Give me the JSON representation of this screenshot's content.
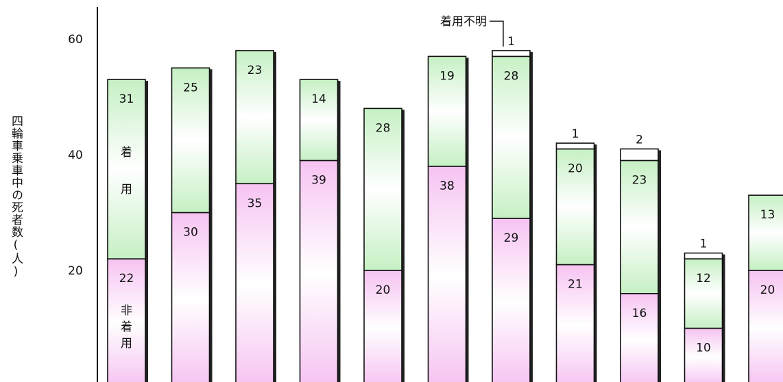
{
  "chart_data": {
    "type": "bar",
    "stacked": true,
    "ylabel": "四輪車乗車中の死者数(人)",
    "ylim": [
      0,
      60
    ],
    "yticks": [
      20,
      40,
      60
    ],
    "grid": false,
    "categories": [
      "",
      "",
      "",
      "",
      "",
      "",
      "",
      "",
      "",
      "",
      ""
    ],
    "series": [
      {
        "name": "非着用",
        "values": [
          22,
          30,
          35,
          39,
          20,
          38,
          29,
          21,
          16,
          10,
          20
        ],
        "color": "#f7c6f3"
      },
      {
        "name": "着用",
        "values": [
          31,
          25,
          23,
          14,
          28,
          19,
          28,
          20,
          23,
          12,
          13
        ],
        "color": "#c9f2c7"
      },
      {
        "name": "着用不明",
        "values": [
          0,
          0,
          0,
          0,
          0,
          0,
          1,
          1,
          2,
          1,
          0
        ],
        "color": "#ffffff"
      }
    ],
    "annotations": {
      "unknown_label": "着用不明",
      "worn_label": "着\n用",
      "not_worn_label": "非\n着\n用"
    }
  }
}
